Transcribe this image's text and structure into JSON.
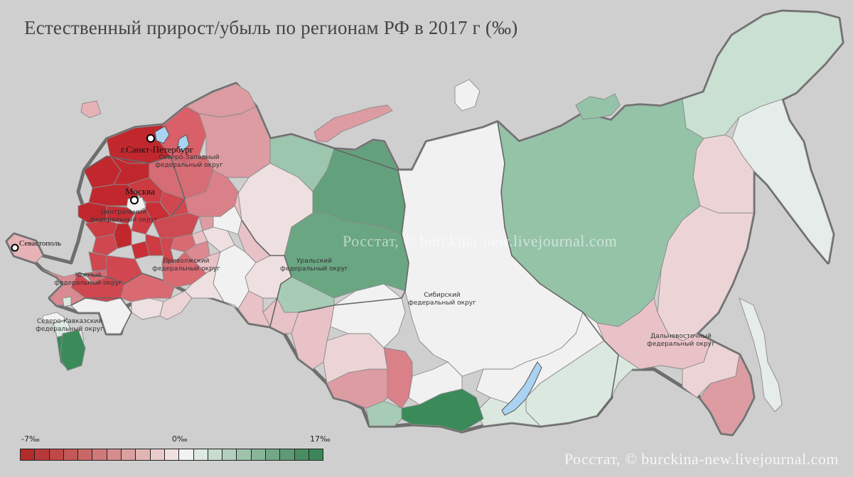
{
  "title": "Естественный прирост/убыль по регионам РФ в 2017 г (‰)",
  "watermark": "Росстат, © burckina-new.livejournal.com",
  "legend": {
    "min_label": "-7‰",
    "mid_label": "0‰",
    "max_label": "17‰",
    "colors": [
      "#b42b2b",
      "#b9393a",
      "#bf4848",
      "#c45757",
      "#c96767",
      "#cf7979",
      "#d58c8c",
      "#dba0a0",
      "#e2b5b5",
      "#eacbcb",
      "#f1e0e0",
      "#f2f2f2",
      "#dde9e1",
      "#c8dccf",
      "#b3cfbd",
      "#9ec2ab",
      "#89b599",
      "#73a787",
      "#5e9a75",
      "#498d63",
      "#3e8659"
    ]
  },
  "districts": [
    {
      "id": "nw",
      "label_1": "Северо-Западный",
      "label_2": "федеральный округ"
    },
    {
      "id": "central",
      "label_1": "Центральный",
      "label_2": "федеральный округ"
    },
    {
      "id": "south",
      "label_1": "Южный",
      "label_2": "федеральный округ"
    },
    {
      "id": "ncaucasus",
      "label_1": "Северо-Кавказский",
      "label_2": "федеральный округ"
    },
    {
      "id": "volga",
      "label_1": "Приволжский",
      "label_2": "федеральный округ"
    },
    {
      "id": "ural",
      "label_1": "Уральский",
      "label_2": "федеральный округ"
    },
    {
      "id": "siberia",
      "label_1": "Сибирский",
      "label_2": "федеральный округ"
    },
    {
      "id": "fareast",
      "label_1": "Дальневосточный",
      "label_2": "федеральный округ"
    }
  ],
  "cities": [
    {
      "id": "spb",
      "name": "г.Санкт-Петербург"
    },
    {
      "id": "moscow",
      "name": "Москва"
    },
    {
      "id": "sevastopol",
      "name": "Севастополь"
    }
  ],
  "colors": {
    "background": "#cfcfcf",
    "strong_decline": "#c0282e",
    "decline": "#d97f86",
    "slight_decline": "#eedfe0",
    "neutral": "#f1f1f1",
    "slight_growth": "#d9e8df",
    "growth": "#95c3a8",
    "strong_growth": "#3b8b5a",
    "water": "#a9d3f0"
  }
}
